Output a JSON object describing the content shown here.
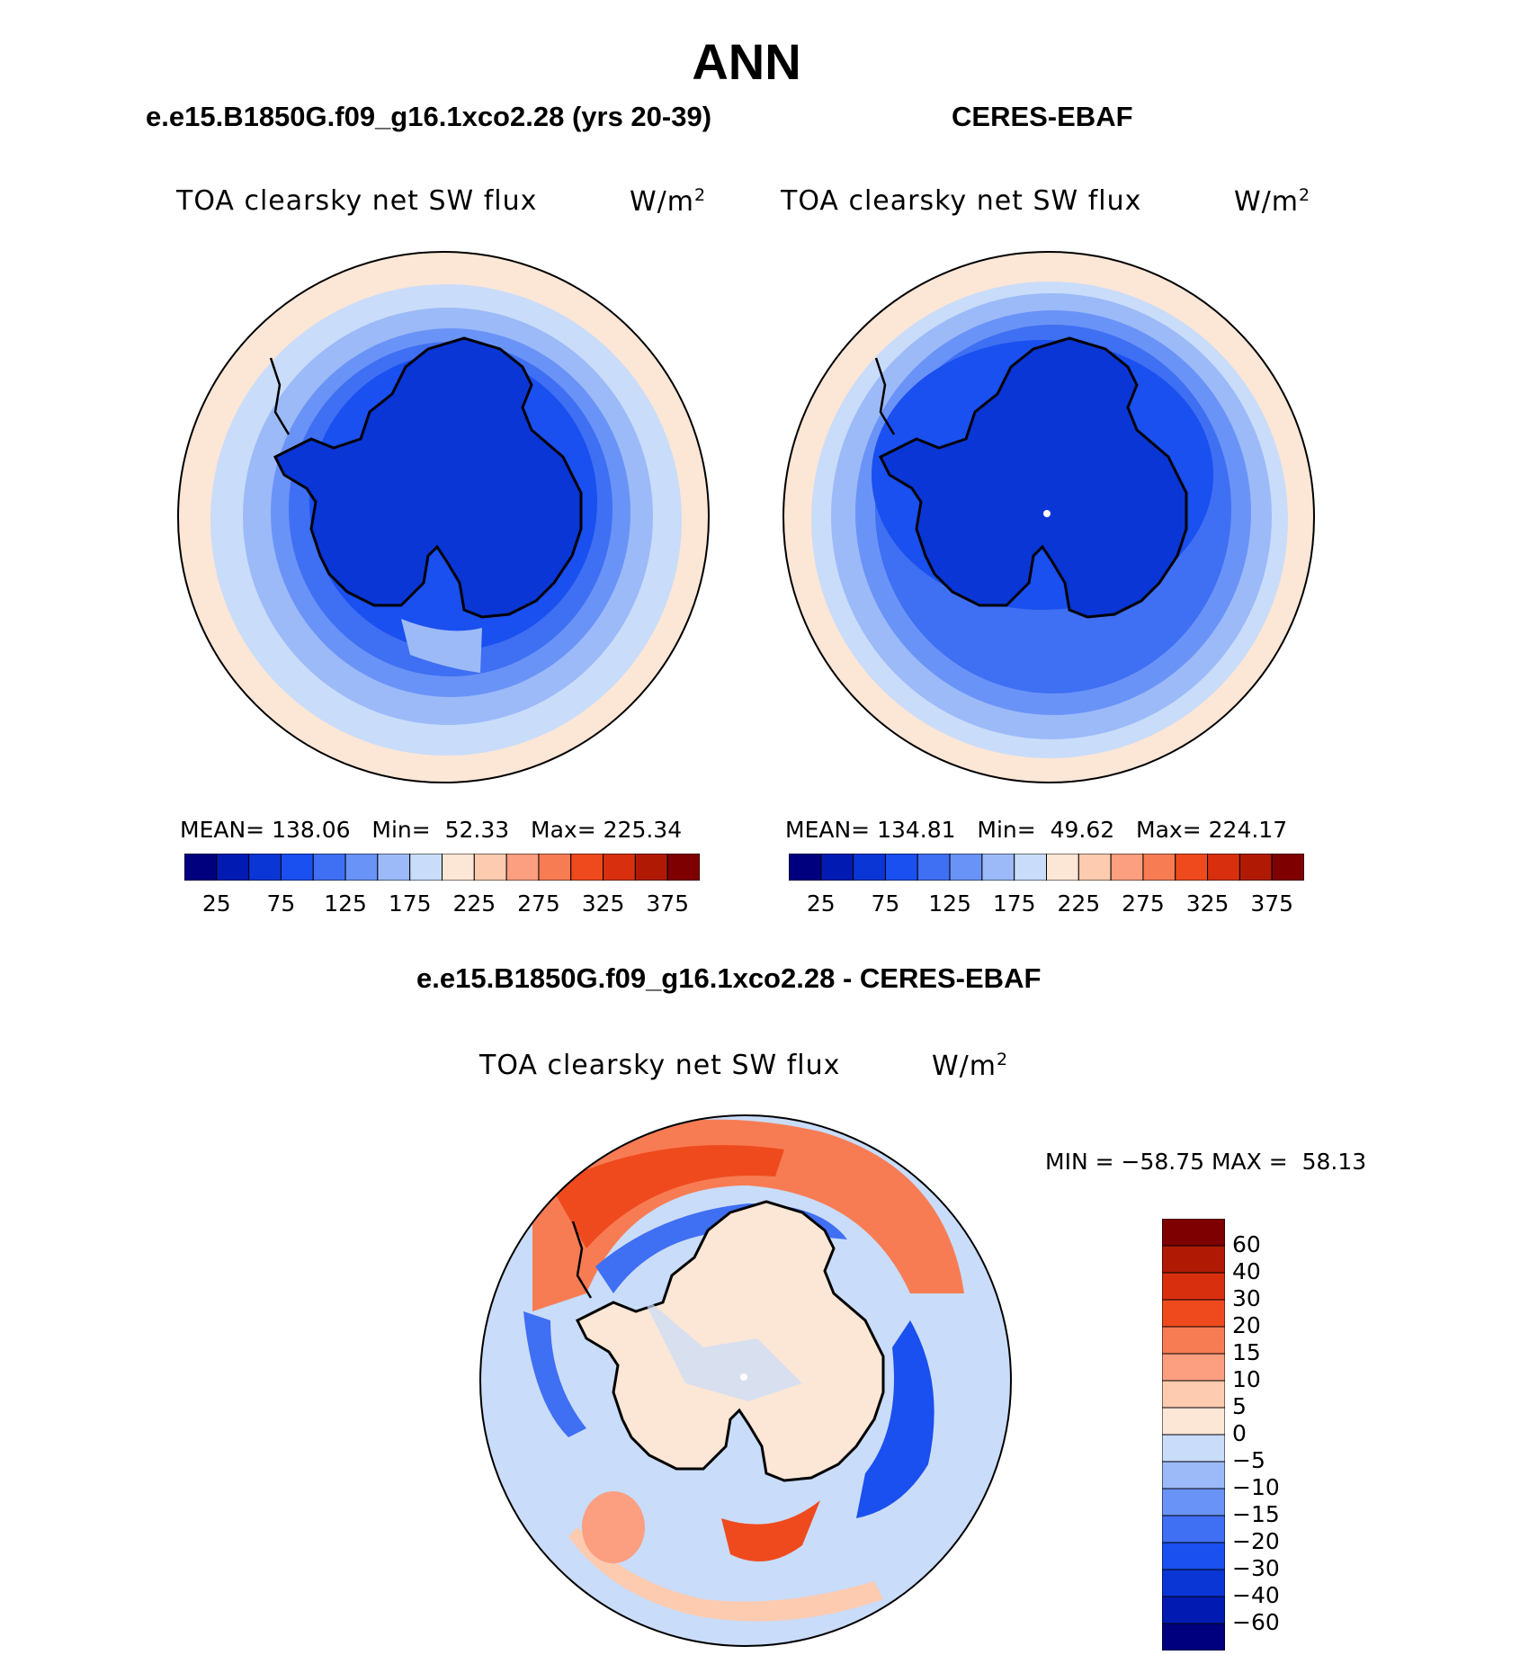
{
  "figure": {
    "season": "ANN"
  },
  "panels": {
    "model": {
      "title": "e.e15.B1850G.f09_g16.1xco2.28 (yrs 20-39)",
      "variable": "TOA clearsky net SW flux",
      "units": "W/m",
      "units_sup": "2",
      "mean_label": "MEAN=",
      "mean": "138.06",
      "min_label": "Min=",
      "min": "52.33",
      "max_label": "Max=",
      "max": "225.34"
    },
    "obs": {
      "title": "CERES-EBAF",
      "variable": "TOA clearsky net SW flux",
      "units": "W/m",
      "units_sup": "2",
      "mean_label": "MEAN=",
      "mean": "134.81",
      "min_label": "Min=",
      "min": "49.62",
      "max_label": "Max=",
      "max": "224.17"
    },
    "diff": {
      "title": "e.e15.B1850G.f09_g16.1xco2.28 - CERES-EBAF",
      "variable": "TOA clearsky net SW flux",
      "units": "W/m",
      "units_sup": "2",
      "min_label": "MIN =",
      "min": "−58.75",
      "max_label": "MAX =",
      "max": "58.13"
    }
  },
  "colorbar_field": {
    "colors": [
      "#00007f",
      "#001ab2",
      "#0a36d6",
      "#1a4ff0",
      "#3f6ff2",
      "#6a93f7",
      "#9cbaf8",
      "#c9dcfa",
      "#fce6d6",
      "#fdcbb0",
      "#fc9e80",
      "#f87c53",
      "#ef4a1e",
      "#d8300e",
      "#b01a05",
      "#7f0000"
    ],
    "tick_labels": [
      "25",
      "75",
      "125",
      "175",
      "225",
      "275",
      "325",
      "375"
    ]
  },
  "colorbar_diff": {
    "colors": [
      "#00007f",
      "#001ab2",
      "#0a36d6",
      "#1a4ff0",
      "#3f6ff2",
      "#6a93f7",
      "#9cbaf8",
      "#c9dcfa",
      "#fce6d6",
      "#fdcbb0",
      "#fc9e80",
      "#f87c53",
      "#ef4a1e",
      "#d8300e",
      "#b01a05",
      "#7f0000"
    ],
    "tick_labels": [
      "60",
      "40",
      "30",
      "20",
      "15",
      "10",
      "5",
      "0",
      "−5",
      "−10",
      "−15",
      "−20",
      "−30",
      "−40",
      "−60"
    ]
  }
}
